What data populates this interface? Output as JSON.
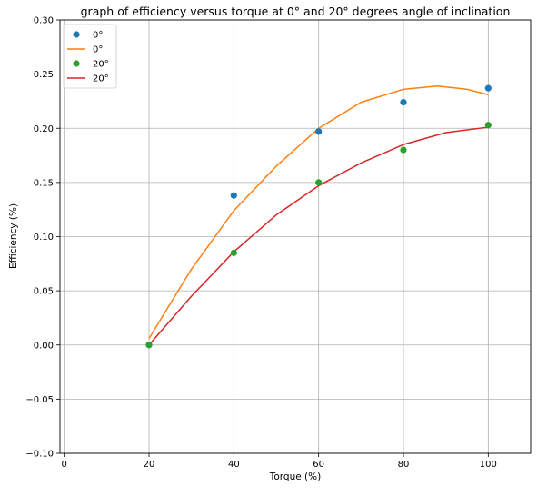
{
  "chart_data": {
    "type": "scatter",
    "title": "graph of efficiency versus torque at 0° and 20° degrees angle of inclination",
    "xlabel": "Torque (%)",
    "ylabel": "Efficiency (%)",
    "xlim": [
      -1,
      110
    ],
    "ylim": [
      -0.1,
      0.3
    ],
    "x_ticks": [
      0,
      20,
      40,
      60,
      80,
      100
    ],
    "y_ticks": [
      -0.1,
      -0.05,
      0.0,
      0.05,
      0.1,
      0.15,
      0.2,
      0.25,
      0.3
    ],
    "x_tick_labels": [
      "0",
      "20",
      "40",
      "60",
      "80",
      "100"
    ],
    "y_tick_labels": [
      "−0.10",
      "−0.05",
      "0.00",
      "0.05",
      "0.10",
      "0.15",
      "0.20",
      "0.25",
      "0.30"
    ],
    "grid": true,
    "legend_position": "top-left",
    "series": [
      {
        "name": "0°",
        "kind": "scatter",
        "color": "#1f77b4",
        "x": [
          20,
          40,
          60,
          80,
          100
        ],
        "y": [
          0.0,
          0.138,
          0.197,
          0.224,
          0.237
        ]
      },
      {
        "name": "0°",
        "kind": "line",
        "color": "#ff7f0e",
        "x": [
          20,
          30,
          40,
          50,
          60,
          70,
          80,
          88,
          95,
          100
        ],
        "y": [
          0.006,
          0.07,
          0.124,
          0.165,
          0.2,
          0.224,
          0.236,
          0.239,
          0.236,
          0.231
        ]
      },
      {
        "name": "20°",
        "kind": "scatter",
        "color": "#2ca02c",
        "x": [
          20,
          40,
          60,
          80,
          100
        ],
        "y": [
          0.0,
          0.085,
          0.15,
          0.18,
          0.203
        ]
      },
      {
        "name": "20°",
        "kind": "line",
        "color": "#d62728",
        "x": [
          20,
          30,
          40,
          50,
          60,
          70,
          80,
          90,
          100
        ],
        "y": [
          0.0,
          0.045,
          0.086,
          0.12,
          0.147,
          0.168,
          0.185,
          0.196,
          0.201
        ]
      }
    ]
  }
}
